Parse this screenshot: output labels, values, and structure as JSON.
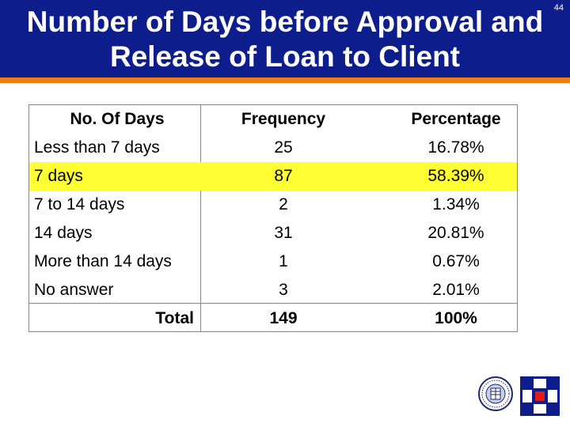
{
  "slide": {
    "number": "44",
    "title": "Number of Days before Approval and Release of Loan to Client"
  },
  "table": {
    "headers": [
      "No. Of Days",
      "Frequency",
      "Percentage"
    ],
    "rows": [
      {
        "label": "Less than 7 days",
        "frequency": "25",
        "percentage": "16.78%"
      },
      {
        "label": "7 days",
        "frequency": "87",
        "percentage": "58.39%"
      },
      {
        "label": "7 to 14 days",
        "frequency": "2",
        "percentage": "1.34%"
      },
      {
        "label": "14 days",
        "frequency": "31",
        "percentage": "20.81%"
      },
      {
        "label": "More than 14 days",
        "frequency": "1",
        "percentage": "0.67%"
      },
      {
        "label": "No answer",
        "frequency": "3",
        "percentage": "2.01%"
      }
    ],
    "total": {
      "label": "Total",
      "frequency": "149",
      "percentage": "100%"
    },
    "highlight_color": "#ffff33"
  },
  "colors": {
    "banner": "#0d1d8c",
    "stripe": "#f07c14",
    "logo_blue": "#0d1d8c",
    "logo_red": "#e01b1b"
  },
  "icons": {
    "seal": "university-seal-icon",
    "logo": "organization-logo-icon"
  }
}
